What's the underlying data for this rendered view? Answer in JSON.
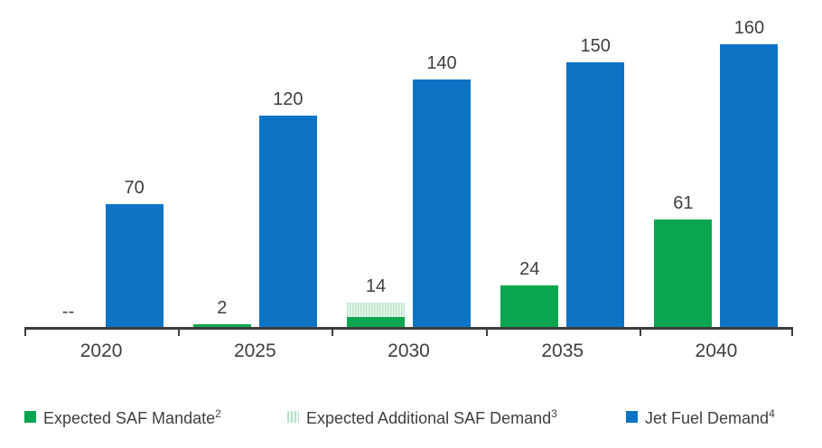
{
  "chart_data": {
    "type": "bar",
    "title": "",
    "xlabel": "",
    "ylabel": "",
    "categories": [
      "2020",
      "2025",
      "2030",
      "2035",
      "2040"
    ],
    "series": [
      {
        "name": "Expected SAF Mandate",
        "values": [
          0,
          2,
          6,
          24,
          61
        ]
      },
      {
        "name": "Expected Additional SAF Demand",
        "values": [
          0,
          0,
          8,
          0,
          0
        ]
      },
      {
        "name": "Jet Fuel Demand",
        "values": [
          70,
          120,
          140,
          150,
          160
        ]
      }
    ],
    "saf_column_labels": [
      "--",
      "2",
      "14",
      "24",
      "61"
    ],
    "jet_column_labels": [
      "70",
      "120",
      "140",
      "150",
      "160"
    ],
    "ylim": [
      0,
      185
    ],
    "grid": false,
    "axis_ticks": "downward ticks at each group boundary including both axis ends",
    "legend_position": "bottom"
  },
  "legend": {
    "items": [
      {
        "label": "Expected SAF Mandate",
        "superscript": "2",
        "swatch": "mandate-green-solid"
      },
      {
        "label": "Expected Additional SAF Demand",
        "superscript": "3",
        "swatch": "light-green-vertical-hatch"
      },
      {
        "label": "Jet Fuel Demand",
        "superscript": "4",
        "swatch": "jet-blue-solid"
      }
    ]
  },
  "colors": {
    "mandate_green": "#0aa64f",
    "additional_hatch_stripe": "#b7e3c8",
    "additional_hatch_background": "#eef8f2",
    "jet_blue": "#0d73c4",
    "axis": "#3d3d3d",
    "text": "#3c4043"
  }
}
